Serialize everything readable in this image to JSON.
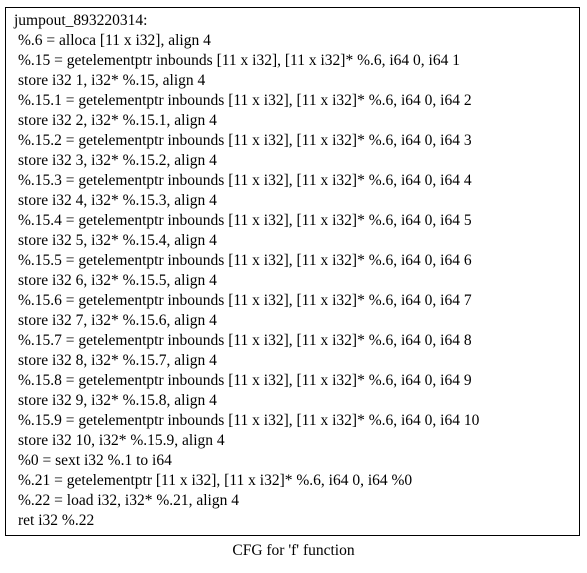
{
  "node": {
    "title": "jumpout_893220314:",
    "lines": [
      "%.6 = alloca [11 x i32], align 4",
      "%.15 = getelementptr inbounds [11 x i32], [11 x i32]* %.6, i64 0, i64 1",
      "store i32 1, i32* %.15, align 4",
      "%.15.1 = getelementptr inbounds [11 x i32], [11 x i32]* %.6, i64 0, i64 2",
      "store i32 2, i32* %.15.1, align 4",
      "%.15.2 = getelementptr inbounds [11 x i32], [11 x i32]* %.6, i64 0, i64 3",
      "store i32 3, i32* %.15.2, align 4",
      "%.15.3 = getelementptr inbounds [11 x i32], [11 x i32]* %.6, i64 0, i64 4",
      "store i32 4, i32* %.15.3, align 4",
      "%.15.4 = getelementptr inbounds [11 x i32], [11 x i32]* %.6, i64 0, i64 5",
      "store i32 5, i32* %.15.4, align 4",
      "%.15.5 = getelementptr inbounds [11 x i32], [11 x i32]* %.6, i64 0, i64 6",
      "store i32 6, i32* %.15.5, align 4",
      "%.15.6 = getelementptr inbounds [11 x i32], [11 x i32]* %.6, i64 0, i64 7",
      "store i32 7, i32* %.15.6, align 4",
      "%.15.7 = getelementptr inbounds [11 x i32], [11 x i32]* %.6, i64 0, i64 8",
      "store i32 8, i32* %.15.7, align 4",
      "%.15.8 = getelementptr inbounds [11 x i32], [11 x i32]* %.6, i64 0, i64 9",
      "store i32 9, i32* %.15.8, align 4",
      "%.15.9 = getelementptr inbounds [11 x i32], [11 x i32]* %.6, i64 0, i64 10",
      "store i32 10, i32* %.15.9, align 4",
      "%0 = sext i32 %.1 to i64",
      "%.21 = getelementptr [11 x i32], [11 x i32]* %.6, i64 0, i64 %0",
      "%.22 = load i32, i32* %.21, align 4",
      "ret i32 %.22"
    ]
  },
  "caption": "CFG for 'f' function"
}
